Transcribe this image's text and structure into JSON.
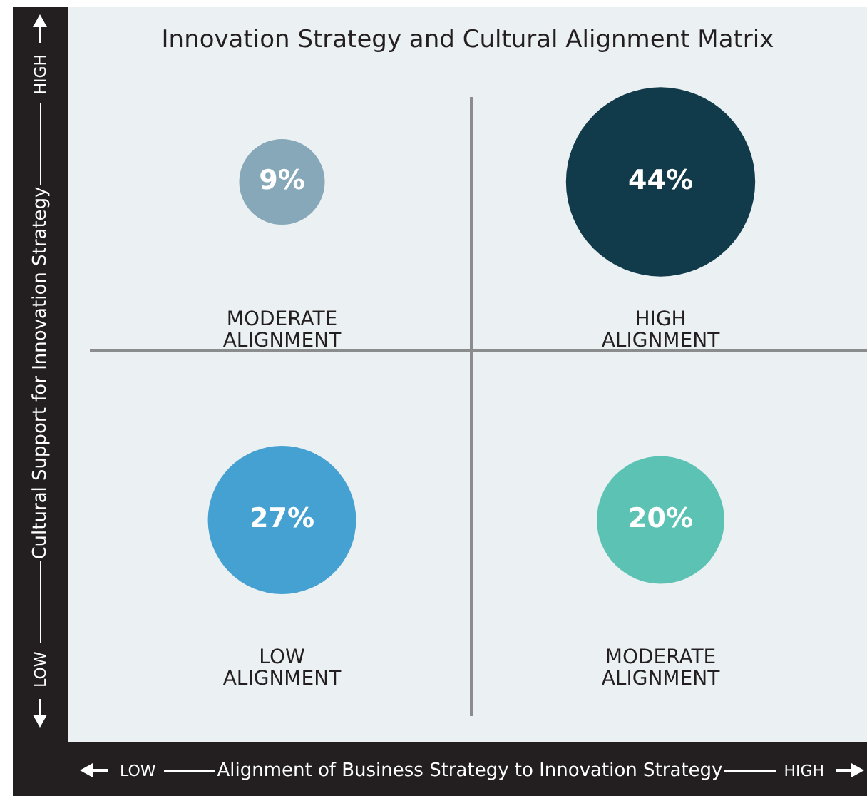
{
  "chart_data": {
    "type": "other",
    "title": "Innovation Strategy and Cultural Alignment Matrix",
    "xlabel": "Alignment of Business Strategy to Innovation Strategy",
    "ylabel": "Cultural Support for Innovation Strategy",
    "categories": [
      "MODERATE\nALIGNMENT",
      "HIGH\nALIGNMENT",
      "LOW\nALIGNMENT",
      "MODERATE\nALIGNMENT"
    ],
    "values": [
      9,
      44,
      27,
      20
    ],
    "value_labels": [
      "9%",
      "44%",
      "27%",
      "20%"
    ],
    "colors": [
      "#86a8b9",
      "#113b4a",
      "#45a1d1",
      "#5cc3b4"
    ],
    "annotations": [
      "LOW",
      "HIGH",
      "LOW",
      "HIGH"
    ]
  }
}
